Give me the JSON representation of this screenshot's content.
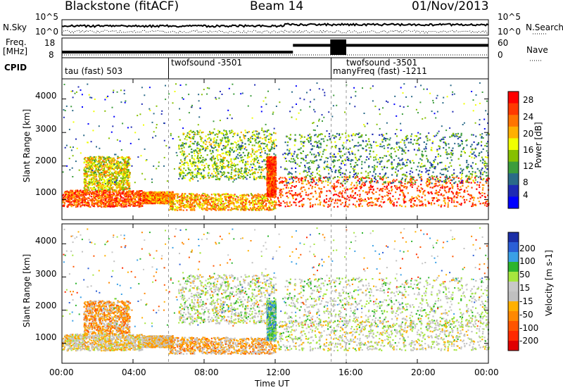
{
  "header": {
    "station": "Blackstone (fitACF)",
    "beam": "Beam 14",
    "date": "01/Nov/2013"
  },
  "panels": {
    "noise": {
      "left_label": "N.Sky",
      "right_label": "N.Search",
      "left_ticks": [
        "10^5",
        "10^0"
      ],
      "right_ticks": [
        "10^5",
        "10^0"
      ]
    },
    "freq": {
      "left_label_1": "Freq.",
      "left_label_2": "[MHz]",
      "right_label": "Nave",
      "left_ticks": [
        "18",
        "8"
      ],
      "right_ticks": [
        "60",
        "0"
      ]
    },
    "cpid": {
      "label": "CPID",
      "segments": [
        "tau (fast) 503",
        "twofsound -3501",
        "manyFreq (fast) -1211",
        "twofsound -3501"
      ]
    }
  },
  "axes": {
    "range_label": "Slant Range [km]",
    "range_ticks": [
      "4000",
      "3000",
      "2000",
      "1000"
    ],
    "time_ticks": [
      "00:00",
      "04:00",
      "08:00",
      "12:00",
      "16:00",
      "20:00",
      "00:00"
    ],
    "x_label": "Time UT"
  },
  "power_colorbar": {
    "label": "Power [dB]",
    "ticks": [
      "28",
      "24",
      "20",
      "16",
      "12",
      "8",
      "4"
    ],
    "colors": [
      "#ff0000",
      "#ff3a00",
      "#ff7400",
      "#ffb000",
      "#f0ff00",
      "#86c000",
      "#3c9c3c",
      "#2a6a88",
      "#1e2ab4",
      "#0000ff"
    ]
  },
  "velocity_colorbar": {
    "label": "Velocity [m s-1]",
    "ticks": [
      "200",
      "100",
      "50",
      "15",
      "-15",
      "-50",
      "-100",
      "-200"
    ],
    "colors": [
      "#1b2ea6",
      "#2b5fd6",
      "#3aa0e6",
      "#2db52d",
      "#a6e63f",
      "#c8c8c8",
      "#c0c0c0",
      "#ffb000",
      "#ff8800",
      "#ff5500",
      "#ff2a00",
      "#e00000"
    ]
  },
  "chart_data": {
    "type": "heatmap",
    "title": "Blackstone (fitACF)   Beam 14   01/Nov/2013",
    "xlabel": "Time UT",
    "ylabel": "Slant Range [km]",
    "xlim": [
      "00:00",
      "24:00"
    ],
    "ylim": [
      400,
      4600
    ],
    "x_ticks": [
      "00:00",
      "04:00",
      "08:00",
      "12:00",
      "16:00",
      "20:00",
      "00:00"
    ],
    "y_ticks": [
      1000,
      2000,
      3000,
      4000
    ],
    "frequency_mhz": [
      {
        "from": "00:00",
        "to": "13:00",
        "value": 10.5
      },
      {
        "from": "13:00",
        "to": "24:00",
        "value": 14.5
      }
    ],
    "power_db_scale": [
      0,
      30
    ],
    "velocity_scale": [
      -250,
      250
    ],
    "scatter_bands": [
      {
        "t0": 0.0,
        "t1": 4.5,
        "r0": 800,
        "r1": 1300,
        "power": 24,
        "velocity": -20
      },
      {
        "t0": 1.2,
        "t1": 3.8,
        "r0": 1300,
        "r1": 2300,
        "power": 17,
        "velocity": -70
      },
      {
        "t0": 4.5,
        "t1": 6.2,
        "r0": 900,
        "r1": 1250,
        "power": 22,
        "velocity": -40
      },
      {
        "t0": 6.0,
        "t1": 12.0,
        "r0": 700,
        "r1": 1200,
        "power": 20,
        "velocity": -60
      },
      {
        "t0": 6.5,
        "t1": 12.0,
        "r0": 1600,
        "r1": 3100,
        "power": 14,
        "velocity": 20
      },
      {
        "t0": 11.5,
        "t1": 12.0,
        "r0": 1100,
        "r1": 2300,
        "power": 26,
        "velocity": 100
      },
      {
        "t0": 12.0,
        "t1": 24.0,
        "r0": 800,
        "r1": 1700,
        "power": 25,
        "velocity": 10
      },
      {
        "t0": 12.5,
        "t1": 24.0,
        "r0": 1500,
        "r1": 3000,
        "power": 10,
        "velocity": 30
      }
    ]
  }
}
